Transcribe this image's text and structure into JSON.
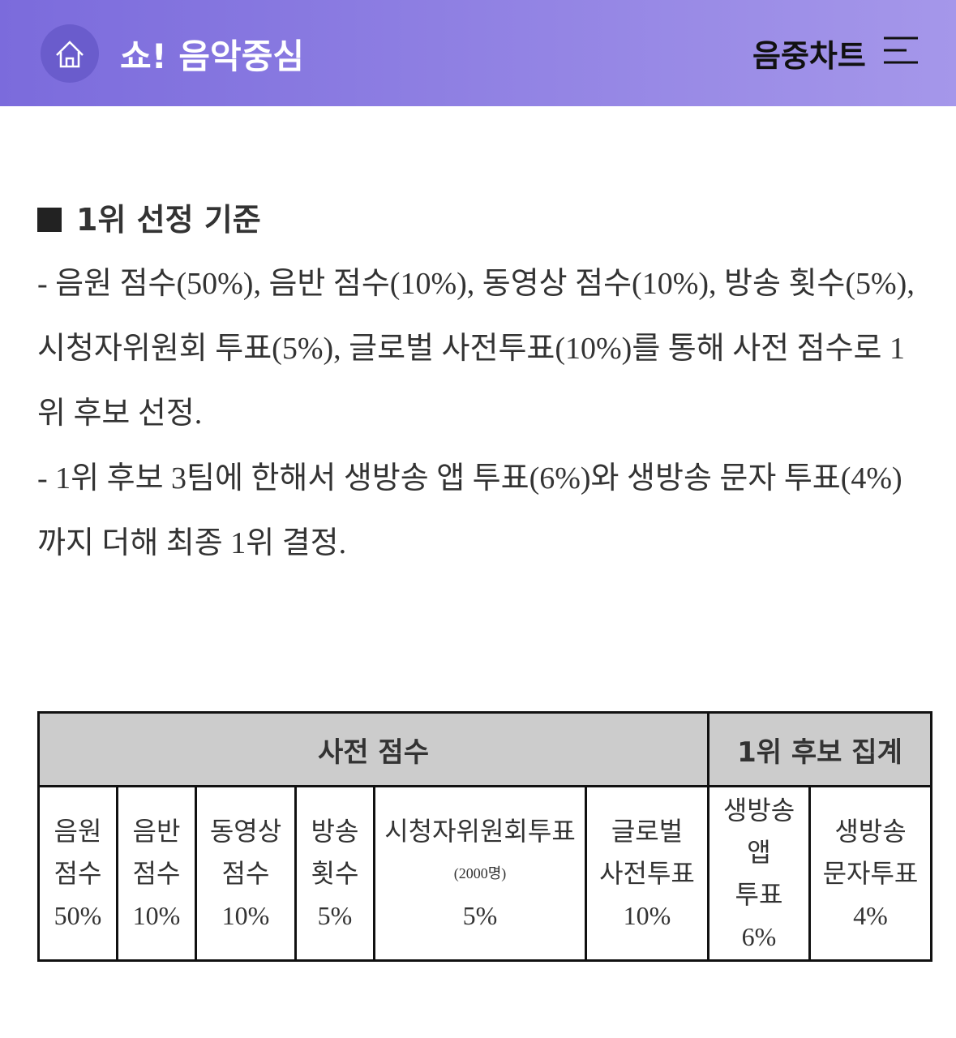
{
  "header": {
    "title": "쇼! 음악중심",
    "menu": "음중차트"
  },
  "section": {
    "heading": "1위 선정 기준",
    "paragraphs": [
      "- 음원 점수(50%), 음반 점수(10%), 동영상 점수(10%), 방송 횟수(5%),",
      "시청자위원회 투표(5%), 글로벌 사전투표(10%)를 통해 사전 점수로 1위 후보 선정.",
      "- 1위 후보 3팀에 한해서 생방송 앱 투표(6%)와 생방송 문자 투표(4%)까지 더해 최종 1위 결정."
    ]
  },
  "table": {
    "groups": [
      "사전 점수",
      "1위 후보 집계"
    ],
    "cells": [
      {
        "lines": [
          "음원",
          "점수"
        ],
        "share": "50%"
      },
      {
        "lines": [
          "음반",
          "점수"
        ],
        "share": "10%"
      },
      {
        "lines": [
          "동영상",
          "점수"
        ],
        "share": "10%"
      },
      {
        "lines": [
          "방송",
          "횟수"
        ],
        "share": "5%"
      },
      {
        "lines": [
          "시청자위원회투표"
        ],
        "note": "(2000명)",
        "share": "5%"
      },
      {
        "lines": [
          "글로벌",
          "사전투표"
        ],
        "share": "10%"
      },
      {
        "lines": [
          "생방송",
          "앱",
          "투표"
        ],
        "share": "6%"
      },
      {
        "lines": [
          "생방송",
          "문자투표"
        ],
        "share": "4%"
      }
    ]
  }
}
